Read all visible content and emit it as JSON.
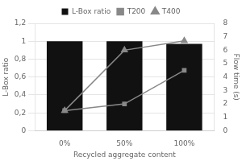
{
  "chart_data": {
    "type": "bar",
    "categories": [
      "0%",
      "50%",
      "100%"
    ],
    "xlabel": "Recycled aggregate content",
    "ylabel": "L-Box ratio",
    "y2label": "Flow time (s)",
    "series": [
      {
        "name": "L-Box ratio",
        "type": "bar",
        "color": "#111111",
        "values": [
          1.0,
          1.0,
          0.97
        ]
      },
      {
        "name": "T200",
        "type": "line",
        "color": "#888888",
        "marker": "square",
        "axis": "y2",
        "values": [
          1.5,
          2.0,
          4.5
        ]
      },
      {
        "name": "T400",
        "type": "line",
        "color": "#888888",
        "marker": "triangle",
        "axis": "y2",
        "values": [
          1.5,
          6.0,
          6.7
        ]
      }
    ],
    "ylim": [
      0,
      1.2
    ],
    "yticks": [
      0,
      {
        "value": 0.2,
        "label": "0,2"
      },
      {
        "value": 0.4,
        "label": "0,4"
      },
      {
        "value": 0.6,
        "label": "0,6"
      },
      {
        "value": 0.8,
        "label": "0,8"
      },
      1,
      {
        "value": 1.2,
        "label": "1,2"
      }
    ],
    "y2lim": [
      0,
      8
    ],
    "y2ticks": [
      0,
      1,
      2,
      3,
      4,
      5,
      6,
      7,
      8
    ],
    "grid": true,
    "legend": "top"
  }
}
